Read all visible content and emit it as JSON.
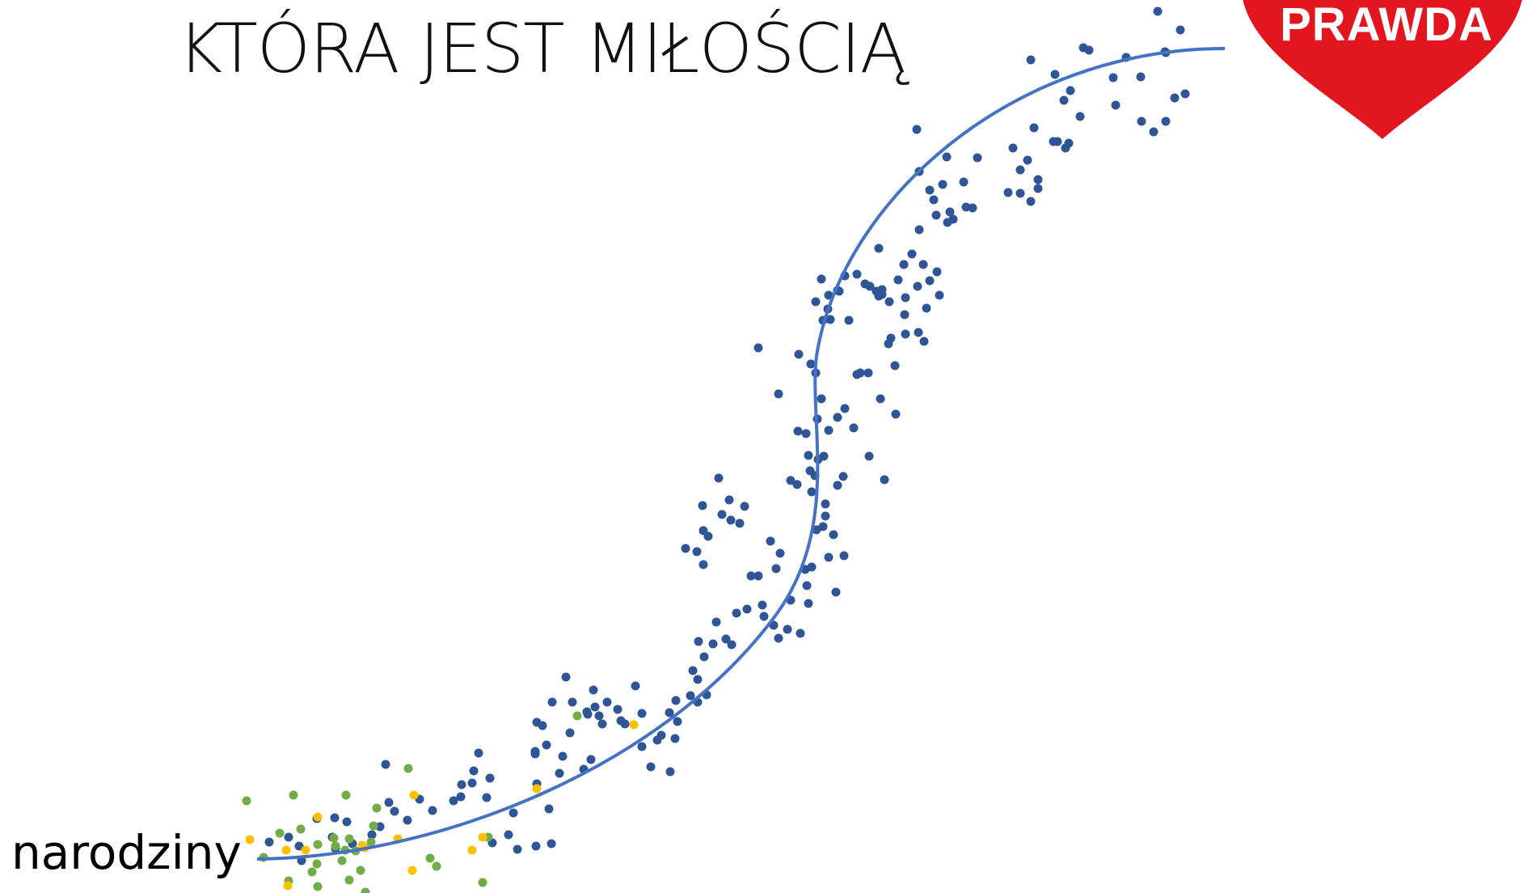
{
  "headline": "KTÓRA JEST MIŁOŚCIĄ",
  "start_label": "narodziny",
  "heart": {
    "label": "PRAWDA",
    "fill": "#e3151f"
  },
  "curve": {
    "color": "#4472c4"
  },
  "dots": {
    "blue": "#2f5597",
    "green": "#70ad47",
    "yellow": "#ffc000"
  }
}
